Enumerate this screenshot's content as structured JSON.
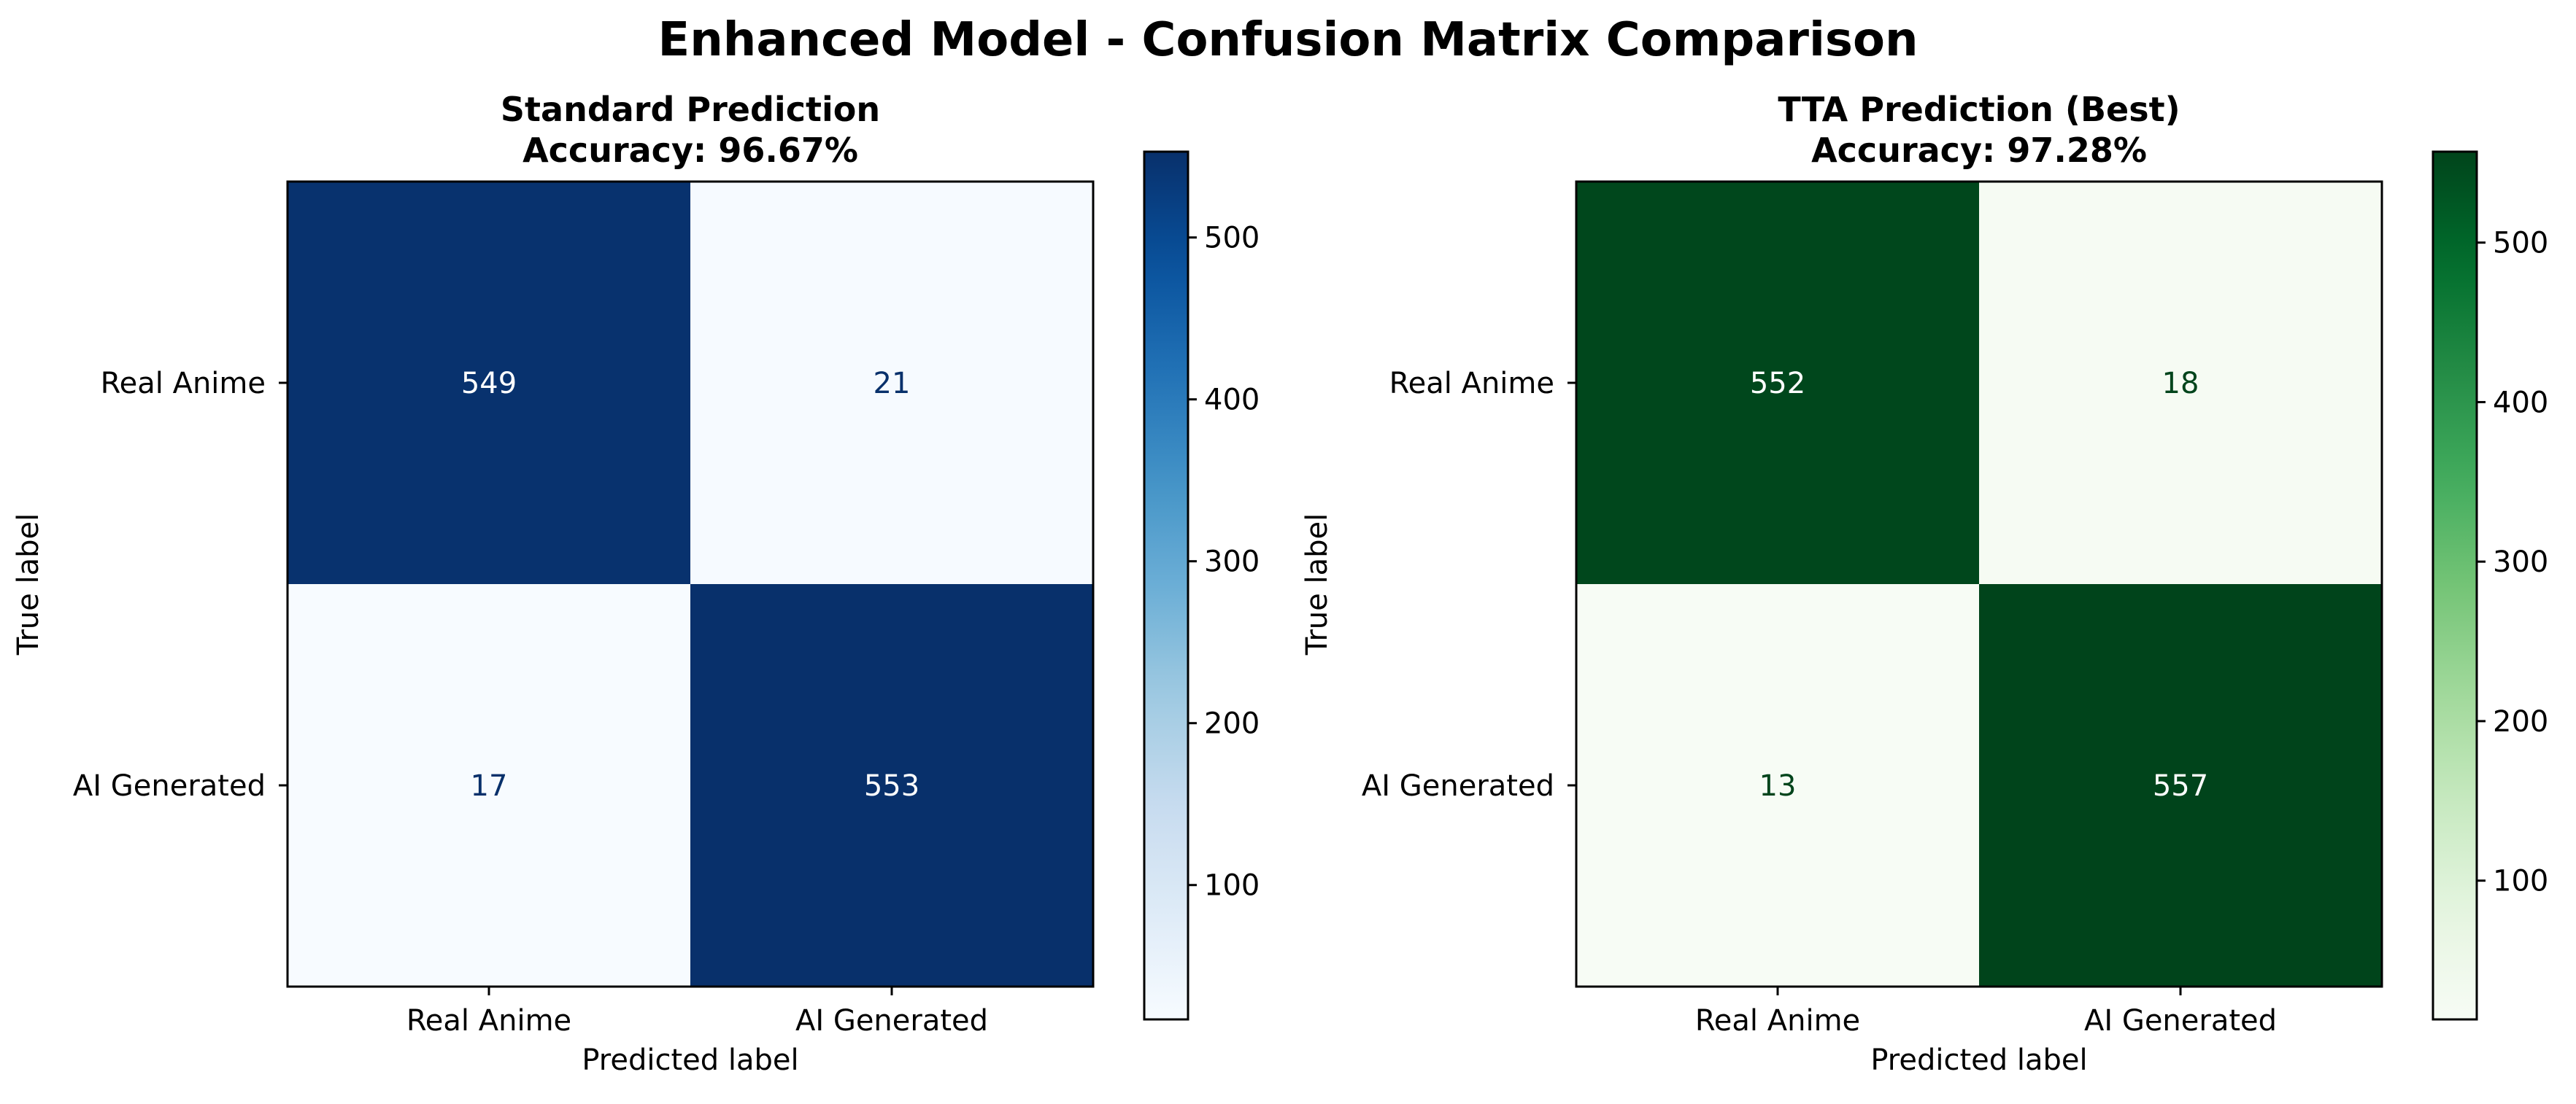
{
  "figure": {
    "suptitle": "Enhanced Model - Confusion Matrix Comparison"
  },
  "chart_data": [
    {
      "type": "heatmap",
      "title_line1": "Standard Prediction",
      "title_line2": "Accuracy: 96.67%",
      "xlabel": "Predicted label",
      "ylabel": "True label",
      "x_categories": [
        "Real Anime",
        "AI Generated"
      ],
      "y_categories": [
        "Real Anime",
        "AI Generated"
      ],
      "matrix": [
        [
          549,
          21
        ],
        [
          17,
          553
        ]
      ],
      "colormap": "Blues",
      "colormap_low": "#f7fbff",
      "colormap_high": "#08306b",
      "colorbar_range": [
        17,
        553
      ],
      "colorbar_ticks": [
        100,
        200,
        300,
        400,
        500
      ]
    },
    {
      "type": "heatmap",
      "title_line1": "TTA Prediction (Best)",
      "title_line2": "Accuracy: 97.28%",
      "xlabel": "Predicted label",
      "ylabel": "True label",
      "x_categories": [
        "Real Anime",
        "AI Generated"
      ],
      "y_categories": [
        "Real Anime",
        "AI Generated"
      ],
      "matrix": [
        [
          552,
          18
        ],
        [
          13,
          557
        ]
      ],
      "colormap": "Greens",
      "colormap_low": "#f7fcf5",
      "colormap_high": "#00441b",
      "colorbar_range": [
        13,
        557
      ],
      "colorbar_ticks": [
        100,
        200,
        300,
        400,
        500
      ]
    }
  ]
}
